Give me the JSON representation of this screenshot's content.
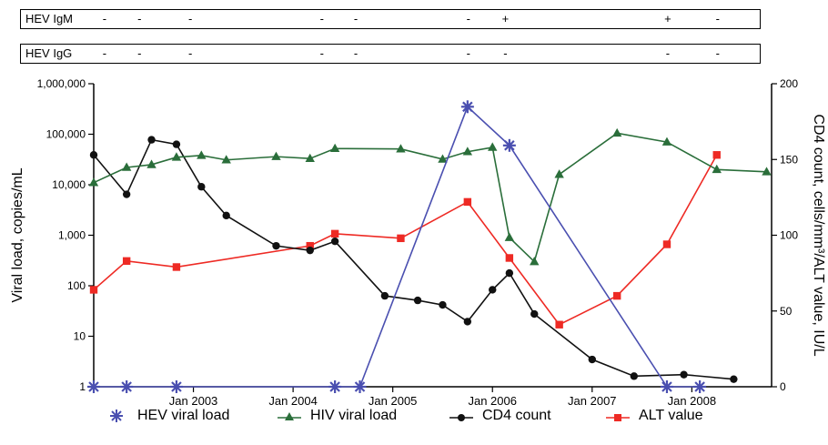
{
  "strips": [
    {
      "label": "HEV IgM",
      "marks": [
        {
          "date": 2002.1,
          "text": "-"
        },
        {
          "date": 2002.45,
          "text": "-"
        },
        {
          "date": 2002.96,
          "text": "-"
        },
        {
          "date": 2004.28,
          "text": "-"
        },
        {
          "date": 2004.62,
          "text": "-"
        },
        {
          "date": 2005.75,
          "text": "-"
        },
        {
          "date": 2006.12,
          "text": "+"
        },
        {
          "date": 2007.75,
          "text": "+"
        },
        {
          "date": 2008.25,
          "text": "-"
        }
      ]
    },
    {
      "label": "HEV IgG",
      "marks": [
        {
          "date": 2002.1,
          "text": "-"
        },
        {
          "date": 2002.45,
          "text": "-"
        },
        {
          "date": 2002.96,
          "text": "-"
        },
        {
          "date": 2004.28,
          "text": "-"
        },
        {
          "date": 2004.62,
          "text": "-"
        },
        {
          "date": 2005.75,
          "text": "-"
        },
        {
          "date": 2006.12,
          "text": "-"
        },
        {
          "date": 2007.75,
          "text": "-"
        },
        {
          "date": 2008.25,
          "text": "-"
        }
      ]
    }
  ],
  "chart_data": {
    "type": "line",
    "x_range": [
      2002.0,
      2008.8
    ],
    "x_ticks": [
      {
        "value": 2003,
        "label": "Jan 2003"
      },
      {
        "value": 2004,
        "label": "Jan 2004"
      },
      {
        "value": 2005,
        "label": "Jan 2005"
      },
      {
        "value": 2006,
        "label": "Jan 2006"
      },
      {
        "value": 2007,
        "label": "Jan 2007"
      },
      {
        "value": 2008,
        "label": "Jan 2008"
      }
    ],
    "y_left": {
      "label": "Viral load, copies/mL",
      "scale": "log",
      "range": [
        1,
        1000000
      ],
      "ticks": [
        {
          "value": 1,
          "label": "1"
        },
        {
          "value": 10,
          "label": "10"
        },
        {
          "value": 100,
          "label": "100"
        },
        {
          "value": 1000,
          "label": "1,000"
        },
        {
          "value": 10000,
          "label": "10,000"
        },
        {
          "value": 100000,
          "label": "100,000"
        },
        {
          "value": 1000000,
          "label": "1,000,000"
        }
      ]
    },
    "y_right": {
      "label": "CD4 count, cells/mm³/ALT value, IU/L",
      "scale": "linear",
      "range": [
        0,
        200
      ],
      "ticks": [
        {
          "value": 0,
          "label": "0"
        },
        {
          "value": 50,
          "label": "50"
        },
        {
          "value": 100,
          "label": "100"
        },
        {
          "value": 150,
          "label": "150"
        },
        {
          "value": 200,
          "label": "200"
        }
      ]
    },
    "series": [
      {
        "name": "HEV viral load",
        "axis": "left",
        "color": "#4a4fb0",
        "marker": "asterisk",
        "points": [
          [
            2002.0,
            1
          ],
          [
            2002.33,
            1
          ],
          [
            2002.83,
            1
          ],
          [
            2004.42,
            1
          ],
          [
            2004.67,
            1
          ],
          [
            2005.75,
            350000
          ],
          [
            2006.17,
            60000
          ],
          [
            2007.75,
            1
          ],
          [
            2008.08,
            1
          ]
        ]
      },
      {
        "name": "HIV viral load",
        "axis": "left",
        "color": "#2a6e3a",
        "marker": "triangle",
        "points": [
          [
            2002.0,
            11000
          ],
          [
            2002.33,
            22000
          ],
          [
            2002.58,
            25000
          ],
          [
            2002.83,
            35000
          ],
          [
            2003.08,
            38000
          ],
          [
            2003.33,
            31000
          ],
          [
            2003.83,
            36000
          ],
          [
            2004.17,
            33000
          ],
          [
            2004.42,
            52000
          ],
          [
            2005.08,
            51000
          ],
          [
            2005.5,
            32000
          ],
          [
            2005.75,
            45000
          ],
          [
            2006.0,
            55000
          ],
          [
            2006.17,
            900
          ],
          [
            2006.42,
            300
          ],
          [
            2006.67,
            16000
          ],
          [
            2007.25,
            105000
          ],
          [
            2007.75,
            70000
          ],
          [
            2008.25,
            20000
          ],
          [
            2008.75,
            18000
          ]
        ]
      },
      {
        "name": "CD4 count",
        "axis": "right",
        "color": "#111111",
        "marker": "circle",
        "points": [
          [
            2002.0,
            153
          ],
          [
            2002.33,
            127
          ],
          [
            2002.58,
            163
          ],
          [
            2002.83,
            160
          ],
          [
            2003.08,
            132
          ],
          [
            2003.33,
            113
          ],
          [
            2003.83,
            93
          ],
          [
            2004.17,
            90
          ],
          [
            2004.42,
            96
          ],
          [
            2004.92,
            60
          ],
          [
            2005.25,
            57
          ],
          [
            2005.5,
            54
          ],
          [
            2005.75,
            43
          ],
          [
            2006.0,
            64
          ],
          [
            2006.17,
            75
          ],
          [
            2006.42,
            48
          ],
          [
            2007.0,
            18
          ],
          [
            2007.42,
            7
          ],
          [
            2007.92,
            8
          ],
          [
            2008.42,
            5
          ]
        ]
      },
      {
        "name": "ALT value",
        "axis": "right",
        "color": "#ee2a24",
        "marker": "square",
        "points": [
          [
            2002.0,
            64
          ],
          [
            2002.33,
            83
          ],
          [
            2002.83,
            79
          ],
          [
            2004.17,
            93
          ],
          [
            2004.42,
            101
          ],
          [
            2005.08,
            98
          ],
          [
            2005.75,
            122
          ],
          [
            2006.17,
            85
          ],
          [
            2006.67,
            41
          ],
          [
            2007.25,
            60
          ],
          [
            2007.75,
            94
          ],
          [
            2008.25,
            153
          ]
        ]
      }
    ]
  }
}
